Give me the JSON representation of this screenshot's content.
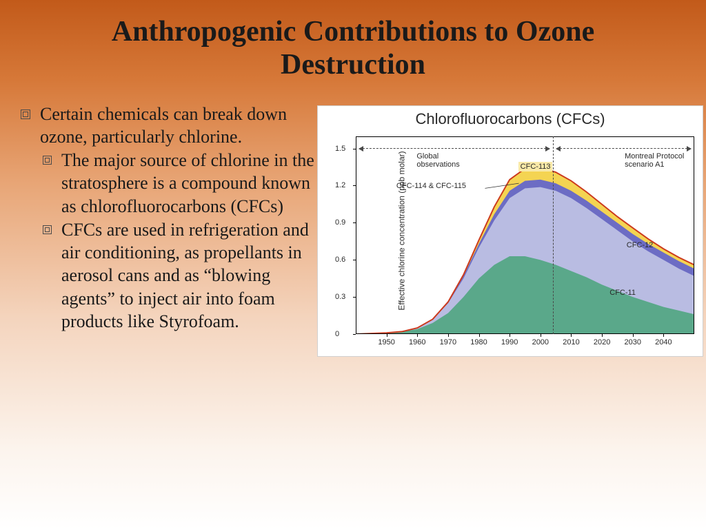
{
  "slide": {
    "title": "Anthropogenic Contributions to Ozone Destruction",
    "bullets": {
      "main": "Certain chemicals can break down ozone, particularly chlorine.",
      "sub1": "The major source of chlorine in the stratosphere is a compound known as chlorofluorocarbons (CFCs)",
      "sub2": "CFCs are used in refrigeration and air conditioning, as propellants in aerosol cans and as “blowing agents” to inject air into foam products like Styrofoam."
    }
  },
  "chart": {
    "title": "Chlorofluorocarbons (CFCs)",
    "y_axis_label": "Effective chlorine concentration (ppb molar)",
    "xlim": [
      1940,
      2050
    ],
    "ylim": [
      0,
      1.6
    ],
    "x_ticks": [
      1950,
      1960,
      1970,
      1980,
      1990,
      2000,
      2010,
      2020,
      2030,
      2040
    ],
    "y_ticks": [
      0,
      0.3,
      0.6,
      0.9,
      1.2,
      1.5
    ],
    "background_color": "#ffffff",
    "observe_divider_year": 2004,
    "annotations": {
      "global_obs": "Global observations",
      "montreal": "Montreal Protocol scenario A1",
      "cfc113_label": "CFC-113",
      "cfc114_label": "CFC-114 & CFC-115",
      "cfc12_label": "CFC-12",
      "cfc11_label": "CFC-11"
    },
    "series": [
      {
        "name": "CFC-11",
        "color": "#5aa88a",
        "data": [
          [
            1940,
            0
          ],
          [
            1950,
            0.01
          ],
          [
            1955,
            0.02
          ],
          [
            1960,
            0.04
          ],
          [
            1965,
            0.09
          ],
          [
            1970,
            0.17
          ],
          [
            1975,
            0.3
          ],
          [
            1980,
            0.45
          ],
          [
            1985,
            0.56
          ],
          [
            1990,
            0.63
          ],
          [
            1995,
            0.63
          ],
          [
            2000,
            0.6
          ],
          [
            2005,
            0.56
          ],
          [
            2010,
            0.51
          ],
          [
            2015,
            0.46
          ],
          [
            2020,
            0.4
          ],
          [
            2025,
            0.35
          ],
          [
            2030,
            0.3
          ],
          [
            2035,
            0.26
          ],
          [
            2040,
            0.22
          ],
          [
            2045,
            0.19
          ],
          [
            2050,
            0.16
          ]
        ]
      },
      {
        "name": "CFC-12",
        "color": "#b9bce2",
        "data": [
          [
            1940,
            0
          ],
          [
            1950,
            0.01
          ],
          [
            1955,
            0.02
          ],
          [
            1960,
            0.05
          ],
          [
            1965,
            0.12
          ],
          [
            1970,
            0.25
          ],
          [
            1975,
            0.45
          ],
          [
            1980,
            0.7
          ],
          [
            1985,
            0.92
          ],
          [
            1990,
            1.1
          ],
          [
            1995,
            1.18
          ],
          [
            2000,
            1.19
          ],
          [
            2005,
            1.16
          ],
          [
            2010,
            1.1
          ],
          [
            2015,
            1.02
          ],
          [
            2020,
            0.93
          ],
          [
            2025,
            0.84
          ],
          [
            2030,
            0.75
          ],
          [
            2035,
            0.67
          ],
          [
            2040,
            0.6
          ],
          [
            2045,
            0.53
          ],
          [
            2050,
            0.47
          ]
        ]
      },
      {
        "name": "CFC-114/115",
        "color": "#6c6cc4",
        "data": [
          [
            1940,
            0
          ],
          [
            1950,
            0.01
          ],
          [
            1955,
            0.02
          ],
          [
            1960,
            0.05
          ],
          [
            1965,
            0.12
          ],
          [
            1970,
            0.26
          ],
          [
            1975,
            0.47
          ],
          [
            1980,
            0.73
          ],
          [
            1985,
            0.97
          ],
          [
            1990,
            1.16
          ],
          [
            1995,
            1.24
          ],
          [
            2000,
            1.25
          ],
          [
            2005,
            1.22
          ],
          [
            2010,
            1.16
          ],
          [
            2015,
            1.08
          ],
          [
            2020,
            0.99
          ],
          [
            2025,
            0.9
          ],
          [
            2030,
            0.81
          ],
          [
            2035,
            0.73
          ],
          [
            2040,
            0.66
          ],
          [
            2045,
            0.59
          ],
          [
            2050,
            0.53
          ]
        ]
      },
      {
        "name": "CFC-113",
        "color": "#f4d452",
        "data": [
          [
            1940,
            0
          ],
          [
            1950,
            0.01
          ],
          [
            1955,
            0.02
          ],
          [
            1960,
            0.05
          ],
          [
            1965,
            0.12
          ],
          [
            1970,
            0.26
          ],
          [
            1975,
            0.48
          ],
          [
            1980,
            0.76
          ],
          [
            1985,
            1.03
          ],
          [
            1990,
            1.25
          ],
          [
            1995,
            1.34
          ],
          [
            2000,
            1.35
          ],
          [
            2005,
            1.31
          ],
          [
            2010,
            1.24
          ],
          [
            2015,
            1.15
          ],
          [
            2020,
            1.05
          ],
          [
            2025,
            0.95
          ],
          [
            2030,
            0.86
          ],
          [
            2035,
            0.77
          ],
          [
            2040,
            0.69
          ],
          [
            2045,
            0.62
          ],
          [
            2050,
            0.56
          ]
        ]
      }
    ],
    "top_line_color": "#cc3a1e"
  }
}
